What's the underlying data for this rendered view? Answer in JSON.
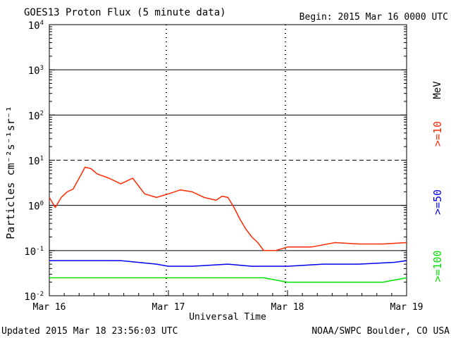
{
  "chart_data": {
    "type": "line",
    "title": "GOES13 Proton Flux (5 minute data)",
    "begin_label": "Begin: 2015 Mar 16 0000 UTC",
    "xlabel": "Universal Time",
    "ylabel": "Particles cm⁻²s⁻¹sr⁻¹",
    "unit_label": "MeV",
    "updated_label": "Updated 2015 Mar 18 23:56:03 UTC",
    "source_label": "NOAA/SWPC Boulder, CO USA",
    "x_ticks": [
      "Mar 16",
      "Mar 17",
      "Mar 18",
      "Mar 19"
    ],
    "xlim": [
      0,
      3
    ],
    "y_scale": "log",
    "ylim": [
      0.01,
      10000
    ],
    "y_ticks": [
      {
        "base": "10",
        "exp": "4",
        "value": 10000
      },
      {
        "base": "10",
        "exp": "3",
        "value": 1000
      },
      {
        "base": "10",
        "exp": "2",
        "value": 100
      },
      {
        "base": "10",
        "exp": "1",
        "value": 10
      },
      {
        "base": "10",
        "exp": "0",
        "value": 1
      },
      {
        "base": "10",
        "exp": "-1",
        "value": 0.1
      },
      {
        "base": "10",
        "exp": "-2",
        "value": 0.01
      }
    ],
    "thresholds": [
      {
        "value": 1000,
        "style": "solid"
      },
      {
        "value": 100,
        "style": "solid"
      },
      {
        "value": 10,
        "style": "dashed"
      },
      {
        "value": 1,
        "style": "solid"
      },
      {
        "value": 0.1,
        "style": "solid"
      }
    ],
    "series": [
      {
        "name": ">=10",
        "color": "#ff2a00",
        "x": [
          0.0,
          0.05,
          0.1,
          0.15,
          0.2,
          0.25,
          0.3,
          0.35,
          0.4,
          0.5,
          0.6,
          0.7,
          0.8,
          0.9,
          1.0,
          1.1,
          1.2,
          1.3,
          1.4,
          1.45,
          1.5,
          1.55,
          1.6,
          1.65,
          1.7,
          1.75,
          1.8,
          1.9,
          2.0,
          2.2,
          2.4,
          2.6,
          2.8,
          3.0
        ],
        "values": [
          1.5,
          0.9,
          1.5,
          2.0,
          2.3,
          4.0,
          7.0,
          6.5,
          5.0,
          4.0,
          3.0,
          4.0,
          1.8,
          1.5,
          1.8,
          2.2,
          2.0,
          1.5,
          1.3,
          1.6,
          1.5,
          0.9,
          0.5,
          0.3,
          0.2,
          0.15,
          0.1,
          0.1,
          0.12,
          0.12,
          0.15,
          0.14,
          0.14,
          0.15
        ]
      },
      {
        "name": ">=50",
        "color": "#0000ee",
        "x": [
          0.0,
          0.3,
          0.6,
          0.9,
          1.0,
          1.2,
          1.5,
          1.7,
          2.0,
          2.3,
          2.6,
          2.9,
          3.0
        ],
        "values": [
          0.06,
          0.06,
          0.06,
          0.05,
          0.045,
          0.045,
          0.05,
          0.045,
          0.045,
          0.05,
          0.05,
          0.055,
          0.06
        ]
      },
      {
        "name": ">=100",
        "color": "#00e000",
        "x": [
          0.0,
          0.3,
          0.6,
          0.9,
          1.0,
          1.2,
          1.5,
          1.8,
          2.0,
          2.4,
          2.8,
          3.0
        ],
        "values": [
          0.025,
          0.025,
          0.025,
          0.025,
          0.025,
          0.025,
          0.025,
          0.025,
          0.02,
          0.02,
          0.02,
          0.025
        ]
      }
    ]
  }
}
